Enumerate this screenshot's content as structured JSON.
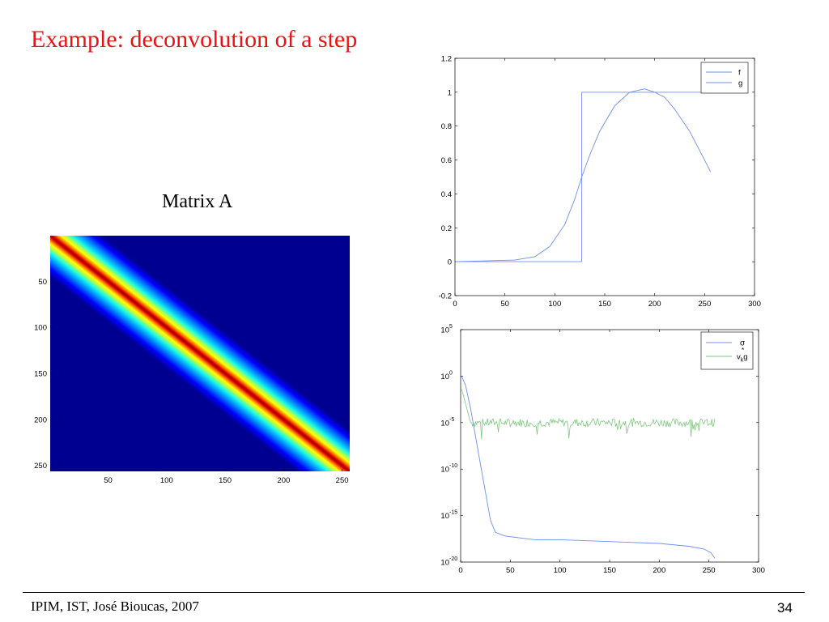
{
  "slide": {
    "title": "Example: deconvolution of a step",
    "footer": "IPIM, IST, José Bioucas, 2007",
    "page_number": "34"
  },
  "chart_data": [
    {
      "type": "heatmap",
      "title": "Matrix A",
      "description_rows": 256,
      "description_cols": 256,
      "band_width_sigma": 12,
      "colormap": "jet",
      "x_ticks": [
        50,
        100,
        150,
        200,
        250
      ],
      "y_ticks": [
        50,
        100,
        150,
        200,
        250
      ]
    },
    {
      "type": "line",
      "xlim": [
        0,
        300
      ],
      "ylim": [
        -0.2,
        1.2
      ],
      "x_ticks": [
        0,
        50,
        100,
        150,
        200,
        250,
        300
      ],
      "y_ticks": [
        -0.2,
        0,
        0.2,
        0.4,
        0.6,
        0.8,
        1,
        1.2
      ],
      "legend": "top-right",
      "series": [
        {
          "name": "f",
          "color": "#6f8ff0",
          "x": [
            1,
            127,
            127,
            256
          ],
          "y": [
            0,
            0,
            1,
            1
          ]
        },
        {
          "name": "g",
          "color": "#6f8ff0",
          "x": [
            1,
            60,
            80,
            95,
            110,
            120,
            127,
            135,
            145,
            160,
            175,
            190,
            200,
            210,
            220,
            235,
            250,
            256
          ],
          "y": [
            0,
            0.01,
            0.03,
            0.09,
            0.22,
            0.37,
            0.5,
            0.63,
            0.77,
            0.92,
            1.0,
            1.02,
            1.0,
            0.97,
            0.9,
            0.77,
            0.6,
            0.53
          ]
        }
      ]
    },
    {
      "type": "line",
      "yscale": "log",
      "xlim": [
        0,
        300
      ],
      "ylim_exp": [
        -20,
        5
      ],
      "x_ticks": [
        0,
        50,
        100,
        150,
        200,
        250,
        300
      ],
      "y_tick_exponents": [
        5,
        0,
        -5,
        -10,
        -15,
        -20
      ],
      "legend": "top-right",
      "series": [
        {
          "name": "σ",
          "color": "#6f8ff0",
          "x": [
            1,
            5,
            10,
            15,
            20,
            25,
            30,
            35,
            45,
            60,
            75,
            100,
            150,
            200,
            230,
            245,
            252,
            256
          ],
          "log10_y": [
            0,
            -1,
            -3.5,
            -6.5,
            -9.5,
            -12.5,
            -15.5,
            -16.8,
            -17.2,
            -17.4,
            -17.6,
            -17.6,
            -17.8,
            -18.0,
            -18.3,
            -18.6,
            -19.0,
            -19.6
          ]
        },
        {
          "name": "v_k^* g",
          "color": "#7fc77f",
          "x_start": 1,
          "x_end": 256,
          "log10_level": -5.0
        }
      ]
    }
  ]
}
